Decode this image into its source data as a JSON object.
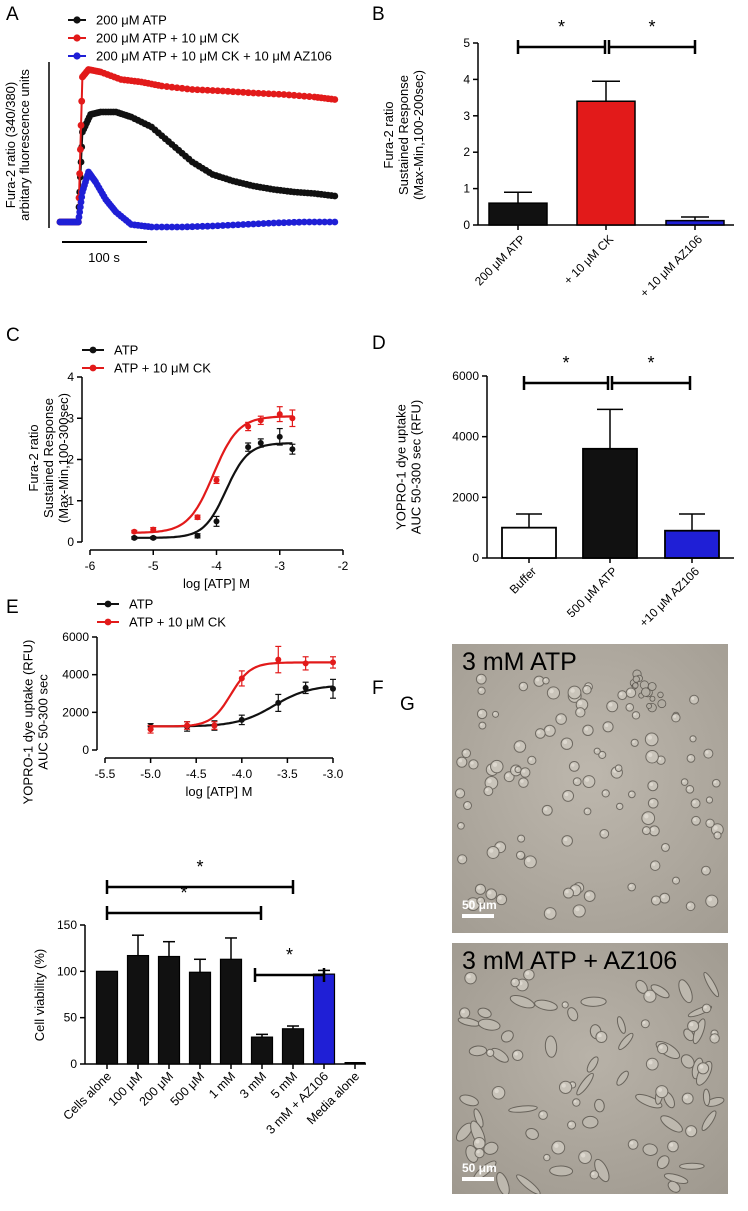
{
  "panel_letters": [
    "A",
    "B",
    "C",
    "D",
    "E",
    "F",
    "G"
  ],
  "colors": {
    "black": "#111111",
    "red": "#e21a1a",
    "blue": "#1f1fd6",
    "white_bar": "#ffffff"
  },
  "chart_data": [
    {
      "id": "A",
      "type": "line",
      "ylabel_lines": [
        "Fura-2 ratio (340/380)",
        "arbitary fluorescence units"
      ],
      "scalebar_label": "100 s",
      "legend": [
        "200 μM ATP",
        "200 μM ATP + 10 μM CK",
        "200 μM ATP + 10 μM CK + 10 μM AZ106"
      ],
      "ylim": [
        -0.2,
        3.2
      ],
      "xlim": [
        0,
        280
      ],
      "series": [
        {
          "name": "200 μM ATP",
          "color": "#111111",
          "x": [
            0,
            10,
            18,
            22,
            30,
            40,
            55,
            70,
            90,
            110,
            130,
            150,
            170,
            190,
            210,
            230,
            250,
            270
          ],
          "y": [
            0,
            0,
            0,
            1.8,
            2.15,
            2.2,
            2.2,
            2.1,
            1.9,
            1.55,
            1.2,
            0.95,
            0.82,
            0.72,
            0.65,
            0.6,
            0.57,
            0.52
          ]
        },
        {
          "name": "200 μM ATP + 10 μM CK",
          "color": "#e21a1a",
          "x": [
            0,
            10,
            18,
            22,
            28,
            40,
            60,
            80,
            100,
            130,
            160,
            190,
            220,
            250,
            270
          ],
          "y": [
            0,
            0,
            0,
            2.9,
            3.05,
            3.0,
            2.85,
            2.8,
            2.72,
            2.65,
            2.62,
            2.58,
            2.55,
            2.5,
            2.45
          ]
        },
        {
          "name": "200 μM ATP + 10 μM CK + 10 μM AZ106",
          "color": "#1f1fd6",
          "x": [
            0,
            10,
            18,
            22,
            28,
            35,
            45,
            55,
            70,
            90,
            120,
            150,
            180,
            210,
            240,
            270
          ],
          "y": [
            0,
            0,
            0,
            0.6,
            1.0,
            0.8,
            0.45,
            0.2,
            -0.05,
            -0.1,
            -0.1,
            -0.08,
            -0.05,
            -0.02,
            0.0,
            0.0
          ]
        }
      ]
    },
    {
      "id": "B",
      "type": "bar",
      "ylabel_lines": [
        "Fura-2 ratio",
        "Sustained Response",
        "(Max-Min,100-200sec)"
      ],
      "categories": [
        "200 μM ATP",
        "+ 10 μM CK",
        "+ 10 μM AZ106"
      ],
      "values": [
        0.6,
        3.4,
        0.12
      ],
      "errors": [
        0.3,
        0.55,
        0.1
      ],
      "colors": [
        "#111111",
        "#e21a1a",
        "#1f1fd6"
      ],
      "ylim": [
        0,
        5
      ],
      "yticks": [
        "0",
        "1",
        "2",
        "3",
        "4",
        "5"
      ],
      "sig_marks": [
        "*",
        "*"
      ]
    },
    {
      "id": "C",
      "type": "scatter",
      "ylabel_lines": [
        "Fura-2 ratio",
        "Sustained Response",
        "(Max-Min,100-300sec)"
      ],
      "xlabel": "log [ATP] M",
      "xlim": [
        -6,
        -2
      ],
      "ylim": [
        0,
        4
      ],
      "xticks": [
        "-6",
        "-5",
        "-4",
        "-3",
        "-2"
      ],
      "yticks": [
        "0",
        "1",
        "2",
        "3",
        "4"
      ],
      "legend": [
        "ATP",
        "ATP + 10 μM CK"
      ],
      "series": [
        {
          "name": "ATP",
          "color": "#111111",
          "x": [
            -5.3,
            -5.0,
            -4.3,
            -4.0,
            -3.5,
            -3.3,
            -3.0,
            -2.8
          ],
          "y": [
            0.1,
            0.1,
            0.15,
            0.5,
            2.3,
            2.4,
            2.55,
            2.25
          ],
          "err": [
            0.03,
            0.03,
            0.05,
            0.12,
            0.1,
            0.1,
            0.2,
            0.12
          ],
          "fit": {
            "bottom": 0.1,
            "top": 2.4,
            "logec50": -3.85,
            "hill": 2.5
          }
        },
        {
          "name": "ATP + 10 μM CK",
          "color": "#e21a1a",
          "x": [
            -5.3,
            -5.0,
            -4.3,
            -4.0,
            -3.5,
            -3.3,
            -3.0,
            -2.8
          ],
          "y": [
            0.25,
            0.3,
            0.6,
            1.5,
            2.8,
            2.95,
            3.1,
            3.0
          ],
          "err": [
            0.03,
            0.05,
            0.05,
            0.08,
            0.1,
            0.1,
            0.18,
            0.2
          ],
          "fit": {
            "bottom": 0.22,
            "top": 3.05,
            "logec50": -4.05,
            "hill": 2.2
          }
        }
      ]
    },
    {
      "id": "D",
      "type": "bar",
      "ylabel_lines": [
        "YOPRO-1 dye uptake",
        "AUC 50-300 sec (RFU)"
      ],
      "categories": [
        "Buffer",
        "500 μM ATP",
        "+10 μM AZ106"
      ],
      "values": [
        1000,
        3600,
        900
      ],
      "errors": [
        450,
        1300,
        550
      ],
      "colors": [
        "#ffffff",
        "#111111",
        "#1f1fd6"
      ],
      "ylim": [
        0,
        6000
      ],
      "yticks": [
        "0",
        "2000",
        "4000",
        "6000"
      ],
      "sig_marks": [
        "*",
        "*"
      ]
    },
    {
      "id": "E",
      "type": "scatter",
      "ylabel_lines": [
        "YOPRO-1 dye uptake (RFU)",
        "AUC 50-300 sec"
      ],
      "xlabel": "log [ATP] M",
      "xlim": [
        -5.5,
        -3.0
      ],
      "ylim": [
        0,
        6000
      ],
      "xticks": [
        "-5.5",
        "-5.0",
        "-4.5",
        "-4.0",
        "-3.5",
        "-3.0"
      ],
      "yticks": [
        "0",
        "2000",
        "4000",
        "6000"
      ],
      "legend": [
        "ATP",
        "ATP + 10 μM CK"
      ],
      "series": [
        {
          "name": "ATP",
          "color": "#111111",
          "x": [
            -5.0,
            -4.6,
            -4.3,
            -4.0,
            -3.6,
            -3.3,
            -3.0
          ],
          "y": [
            1250,
            1250,
            1300,
            1600,
            2500,
            3300,
            3250
          ],
          "err": [
            150,
            250,
            250,
            250,
            450,
            300,
            500
          ],
          "fit": {
            "bottom": 1250,
            "top": 3450,
            "logec50": -3.65,
            "hill": 2.2
          }
        },
        {
          "name": "ATP + 10 μM CK",
          "color": "#e21a1a",
          "x": [
            -5.0,
            -4.6,
            -4.3,
            -4.0,
            -3.6,
            -3.3,
            -3.0
          ],
          "y": [
            1100,
            1300,
            1300,
            3800,
            4800,
            4600,
            4650
          ],
          "err": [
            200,
            200,
            200,
            400,
            700,
            350,
            300
          ],
          "fit": {
            "bottom": 1250,
            "top": 4650,
            "logec50": -4.12,
            "hill": 4.0
          }
        }
      ]
    },
    {
      "id": "F",
      "type": "bar",
      "ylabel": "Cell viability (%)",
      "categories": [
        "Cells alone",
        "100 μM",
        "200 μM",
        "500 μM",
        "1 mM",
        "3 mM",
        "5 mM",
        "3 mM + AZ106",
        "Media alone"
      ],
      "values": [
        100,
        117,
        116,
        99,
        113,
        29,
        38,
        97,
        0
      ],
      "errors": [
        0,
        22,
        16,
        14,
        23,
        3,
        3,
        4,
        0.5
      ],
      "colors": [
        "#111111",
        "#111111",
        "#111111",
        "#111111",
        "#111111",
        "#111111",
        "#111111",
        "#1f1fd6",
        "#111111"
      ],
      "ylim": [
        0,
        150
      ],
      "yticks": [
        "0",
        "50",
        "100",
        "150"
      ],
      "sig_marks": [
        "*",
        "*",
        "*"
      ]
    }
  ],
  "micrographs": [
    {
      "title": "3 mM ATP",
      "scale_label": "50 μm"
    },
    {
      "title": "3 mM ATP + AZ106",
      "scale_label": "50 μm"
    }
  ]
}
